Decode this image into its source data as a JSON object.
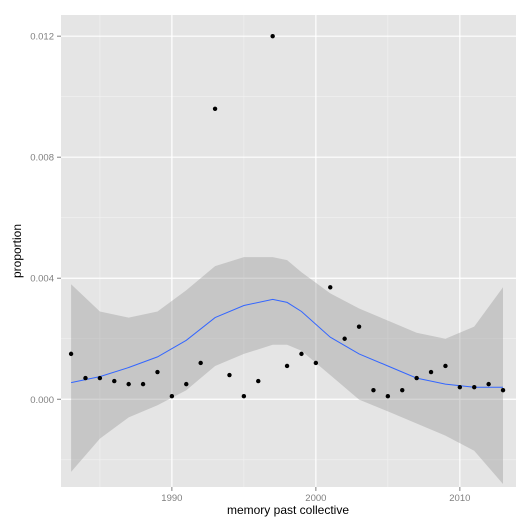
{
  "chart_data": {
    "type": "scatter",
    "title": "",
    "xlabel": "memory past collective",
    "ylabel": "proportion",
    "xlim": [
      1982.3,
      2013.9
    ],
    "ylim": [
      -0.0029,
      0.0127
    ],
    "x_ticks": [
      1990,
      2000,
      2010
    ],
    "y_ticks": [
      0.0,
      0.004,
      0.008,
      0.012
    ],
    "x_tick_labels": [
      "1990",
      "2000",
      "2010"
    ],
    "y_tick_labels": [
      "0.000",
      "0.004",
      "0.008",
      "0.012"
    ],
    "grid": true,
    "points": [
      {
        "x": 1983,
        "y": 0.0015
      },
      {
        "x": 1984,
        "y": 0.0007
      },
      {
        "x": 1985,
        "y": 0.0007
      },
      {
        "x": 1986,
        "y": 0.0006
      },
      {
        "x": 1987,
        "y": 0.0005
      },
      {
        "x": 1988,
        "y": 0.0005
      },
      {
        "x": 1989,
        "y": 0.0009
      },
      {
        "x": 1990,
        "y": 0.0001
      },
      {
        "x": 1991,
        "y": 0.0005
      },
      {
        "x": 1992,
        "y": 0.0012
      },
      {
        "x": 1993,
        "y": 0.0096
      },
      {
        "x": 1994,
        "y": 0.0008
      },
      {
        "x": 1995,
        "y": 0.0001
      },
      {
        "x": 1996,
        "y": 0.0006
      },
      {
        "x": 1997,
        "y": 0.012
      },
      {
        "x": 1998,
        "y": 0.0011
      },
      {
        "x": 1999,
        "y": 0.0015
      },
      {
        "x": 2000,
        "y": 0.0012
      },
      {
        "x": 2001,
        "y": 0.0037
      },
      {
        "x": 2002,
        "y": 0.002
      },
      {
        "x": 2003,
        "y": 0.0024
      },
      {
        "x": 2004,
        "y": 0.0003
      },
      {
        "x": 2005,
        "y": 0.0001
      },
      {
        "x": 2006,
        "y": 0.0003
      },
      {
        "x": 2007,
        "y": 0.0007
      },
      {
        "x": 2008,
        "y": 0.0009
      },
      {
        "x": 2009,
        "y": 0.0011
      },
      {
        "x": 2010,
        "y": 0.0004
      },
      {
        "x": 2011,
        "y": 0.0004
      },
      {
        "x": 2012,
        "y": 0.0005
      },
      {
        "x": 2013,
        "y": 0.0003
      }
    ],
    "smooth": {
      "x": [
        1983,
        1985,
        1987,
        1989,
        1991,
        1993,
        1995,
        1997,
        1998,
        1999,
        2001,
        2003,
        2005,
        2007,
        2009,
        2011,
        2013
      ],
      "y": [
        0.00055,
        0.00075,
        0.00105,
        0.0014,
        0.00195,
        0.0027,
        0.0031,
        0.0033,
        0.0032,
        0.0029,
        0.00205,
        0.0015,
        0.0011,
        0.0007,
        0.0005,
        0.0004,
        0.0004
      ],
      "upper": [
        0.0038,
        0.0029,
        0.0027,
        0.0029,
        0.0036,
        0.0044,
        0.0047,
        0.0047,
        0.0046,
        0.0042,
        0.0035,
        0.003,
        0.0026,
        0.0022,
        0.002,
        0.0024,
        0.0037
      ],
      "lower": [
        -0.0024,
        -0.0013,
        -0.0006,
        -0.0002,
        0.0003,
        0.0011,
        0.0015,
        0.0018,
        0.0018,
        0.0016,
        0.0008,
        -1e-05,
        -0.0004,
        -0.0008,
        -0.0012,
        -0.0017,
        -0.0028
      ]
    },
    "colors": {
      "panel_background": "#e5e5e5",
      "grid_major": "#ffffff",
      "grid_minor": "#f2f2f2",
      "point": "#000000",
      "smooth_line": "#3366ff",
      "ribbon": "#999999"
    }
  }
}
